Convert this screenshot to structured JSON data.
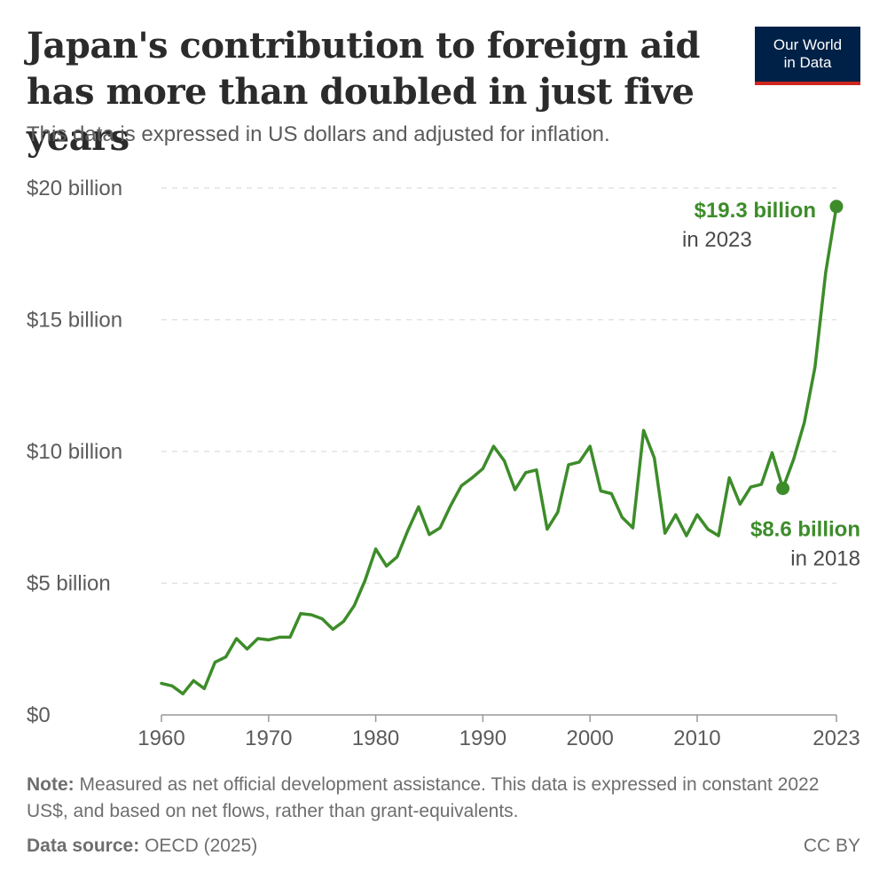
{
  "header": {
    "title": "Japan's contribution to foreign aid has more than doubled in just five years",
    "subtitle": "This data is expressed in US dollars and adjusted for inflation."
  },
  "logo": {
    "line1": "Our World",
    "line2": "in Data"
  },
  "footer": {
    "note_label": "Note:",
    "note_text": "Measured as net official development assistance. This data is expressed in constant 2022 US$, and based on net flows, rather than grant-equivalents.",
    "source_label": "Data source:",
    "source_text": "OECD (2025)",
    "license": "CC BY"
  },
  "colors": {
    "line": "#3d8c2a",
    "grid": "#dddddd",
    "axis": "#999999",
    "logo_bg": "#002147",
    "logo_accent": "#ce261e"
  },
  "chart_data": {
    "type": "line",
    "xlabel": "",
    "ylabel": "",
    "ylim": [
      0,
      20
    ],
    "xlim": [
      1960,
      2023
    ],
    "y_ticks": [
      {
        "value": 0,
        "label": "$0"
      },
      {
        "value": 5,
        "label": "$5 billion"
      },
      {
        "value": 10,
        "label": "$10 billion"
      },
      {
        "value": 15,
        "label": "$15 billion"
      },
      {
        "value": 20,
        "label": "$20 billion"
      }
    ],
    "x_ticks": [
      {
        "value": 1960,
        "label": "1960"
      },
      {
        "value": 1970,
        "label": "1970"
      },
      {
        "value": 1980,
        "label": "1980"
      },
      {
        "value": 1990,
        "label": "1990"
      },
      {
        "value": 2000,
        "label": "2000"
      },
      {
        "value": 2010,
        "label": "2010"
      },
      {
        "value": 2023,
        "label": "2023"
      }
    ],
    "grid": "horizontal dashed",
    "series": [
      {
        "x": [
          1960,
          1961,
          1962,
          1963,
          1964,
          1965,
          1966,
          1967,
          1968,
          1969,
          1970,
          1971,
          1972,
          1973,
          1974,
          1975,
          1976,
          1977,
          1978,
          1979,
          1980,
          1981,
          1982,
          1983,
          1984,
          1985,
          1986,
          1987,
          1988,
          1989,
          1990,
          1991,
          1992,
          1993,
          1994,
          1995,
          1996,
          1997,
          1998,
          1999,
          2000,
          2001,
          2002,
          2003,
          2004,
          2005,
          2006,
          2007,
          2008,
          2009,
          2010,
          2011,
          2012,
          2013,
          2014,
          2015,
          2016,
          2017,
          2018,
          2019,
          2020,
          2021,
          2022,
          2023
        ],
        "y": [
          1.2,
          1.1,
          0.8,
          1.3,
          1.0,
          2.0,
          2.2,
          2.9,
          2.5,
          2.9,
          2.85,
          2.95,
          2.95,
          3.85,
          3.8,
          3.65,
          3.25,
          3.55,
          4.15,
          5.1,
          6.3,
          5.65,
          6.0,
          7.0,
          7.9,
          6.85,
          7.1,
          7.95,
          8.7,
          9.0,
          9.35,
          10.2,
          9.65,
          8.55,
          9.2,
          9.3,
          7.05,
          7.7,
          9.5,
          9.6,
          10.2,
          8.5,
          8.4,
          7.5,
          7.1,
          10.8,
          9.75,
          6.9,
          7.6,
          6.8,
          7.6,
          7.05,
          6.8,
          9.0,
          8.0,
          8.65,
          8.75,
          9.95,
          8.6,
          9.7,
          11.1,
          13.2,
          16.8,
          19.3
        ]
      }
    ],
    "annotations": [
      {
        "value": "$19.3 billion",
        "year": "in 2023",
        "x": 2023,
        "y": 19.3
      },
      {
        "value": "$8.6 billion",
        "year": "in 2018",
        "x": 2018,
        "y": 8.6
      }
    ]
  }
}
